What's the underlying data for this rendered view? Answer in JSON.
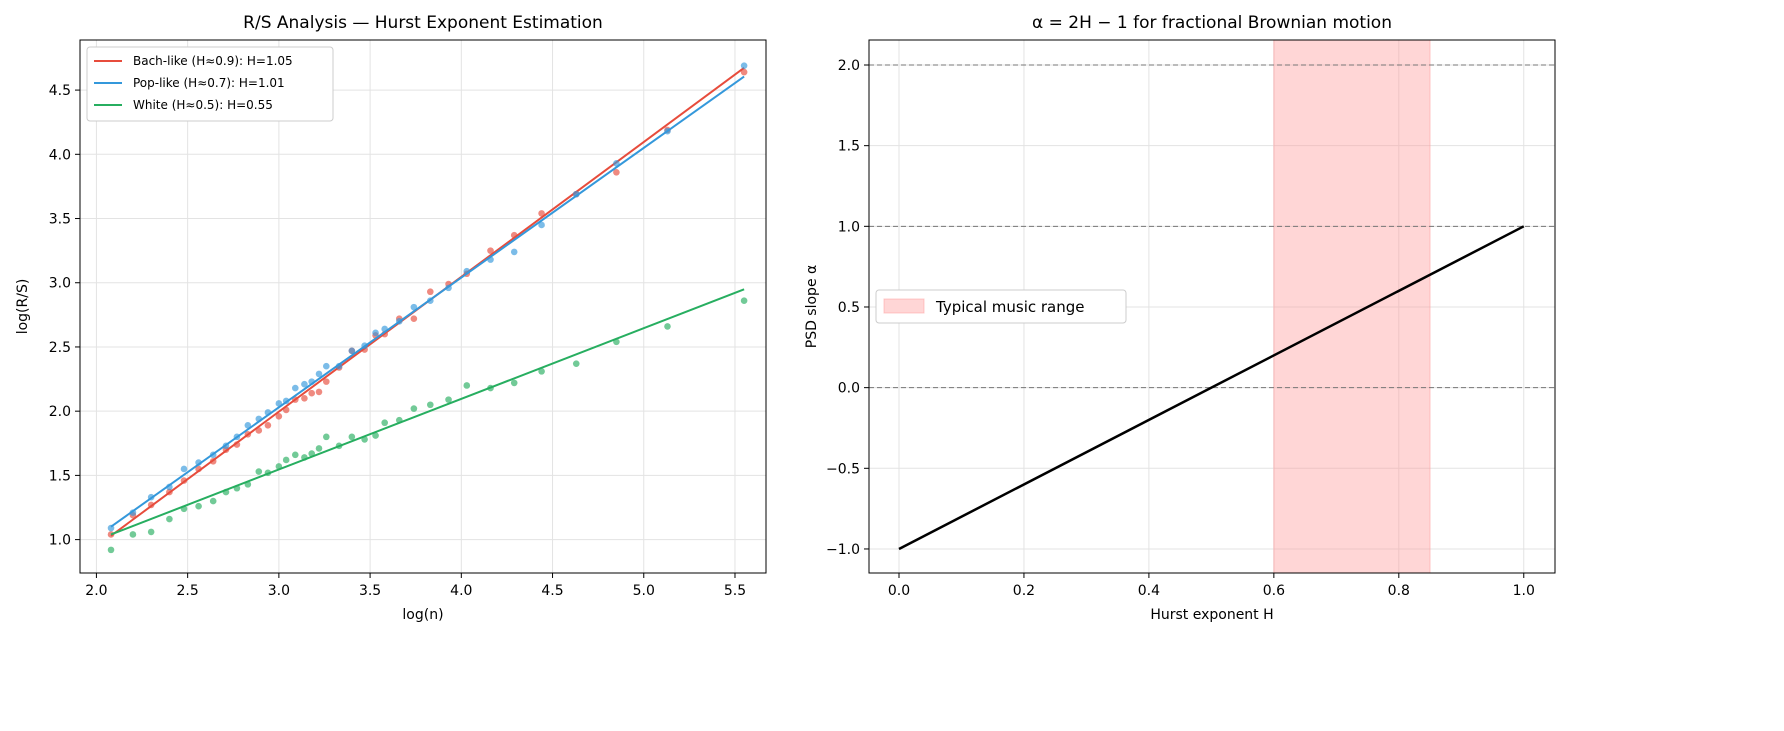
{
  "chart_data": [
    {
      "type": "scatter",
      "title": "R/S Analysis — Hurst Exponent Estimation",
      "xlabel": "log(n)",
      "ylabel": "log(R/S)",
      "xlim": [
        1.91,
        5.67
      ],
      "ylim": [
        0.74,
        4.89
      ],
      "xticks": [
        2.0,
        2.5,
        3.0,
        3.5,
        4.0,
        4.5,
        5.0,
        5.5
      ],
      "yticks": [
        1.0,
        1.5,
        2.0,
        2.5,
        3.0,
        3.5,
        4.0,
        4.5
      ],
      "grid": true,
      "legend_position": "top-left",
      "x": [
        2.08,
        2.2,
        2.3,
        2.4,
        2.48,
        2.56,
        2.64,
        2.71,
        2.77,
        2.83,
        2.89,
        2.94,
        3.0,
        3.04,
        3.09,
        3.14,
        3.18,
        3.22,
        3.26,
        3.33,
        3.4,
        3.47,
        3.53,
        3.58,
        3.66,
        3.74,
        3.83,
        3.93,
        4.03,
        4.16,
        4.29,
        4.44,
        4.63,
        4.85,
        5.13,
        5.55
      ],
      "series": [
        {
          "name": "Bach-like (H≈0.9): H=1.05",
          "color": "#e74c3c",
          "slope": 1.05,
          "intercept": -1.154,
          "values": [
            1.04,
            1.19,
            1.27,
            1.37,
            1.46,
            1.55,
            1.61,
            1.7,
            1.74,
            1.82,
            1.85,
            1.89,
            1.96,
            2.01,
            2.09,
            2.1,
            2.14,
            2.15,
            2.23,
            2.34,
            2.47,
            2.48,
            2.59,
            2.6,
            2.72,
            2.72,
            2.93,
            2.99,
            3.07,
            3.25,
            3.37,
            3.54,
            3.69,
            3.86,
            4.19,
            4.64
          ]
        },
        {
          "name": "Pop-like (H≈0.7): H=1.01",
          "color": "#3498db",
          "slope": 1.01,
          "intercept": -1.0,
          "values": [
            1.09,
            1.21,
            1.33,
            1.41,
            1.55,
            1.6,
            1.66,
            1.73,
            1.8,
            1.89,
            1.94,
            1.99,
            2.06,
            2.08,
            2.18,
            2.21,
            2.23,
            2.29,
            2.35,
            2.35,
            2.47,
            2.51,
            2.61,
            2.64,
            2.7,
            2.81,
            2.86,
            2.96,
            3.09,
            3.18,
            3.24,
            3.45,
            3.69,
            3.93,
            4.18,
            4.69
          ]
        },
        {
          "name": "White (H≈0.5): H=0.55",
          "color": "#27ae60",
          "slope": 0.55,
          "intercept": -0.104,
          "values": [
            0.92,
            1.04,
            1.06,
            1.16,
            1.24,
            1.26,
            1.3,
            1.37,
            1.4,
            1.43,
            1.53,
            1.52,
            1.57,
            1.62,
            1.66,
            1.64,
            1.67,
            1.71,
            1.8,
            1.73,
            1.8,
            1.78,
            1.81,
            1.91,
            1.93,
            2.02,
            2.05,
            2.09,
            2.2,
            2.18,
            2.22,
            2.31,
            2.37,
            2.54,
            2.66,
            2.86
          ]
        }
      ]
    },
    {
      "type": "line",
      "title": "α = 2H − 1 for fractional Brownian motion",
      "xlabel": "Hurst exponent H",
      "ylabel": "PSD slope α",
      "xlim": [
        -0.048,
        1.05
      ],
      "ylim": [
        -1.149,
        2.155
      ],
      "xticks": [
        0.0,
        0.2,
        0.4,
        0.6,
        0.8,
        1.0
      ],
      "yticks": [
        -1.0,
        -0.5,
        0.0,
        0.5,
        1.0,
        1.5,
        2.0
      ],
      "grid": true,
      "legend_position": "center-left",
      "x": [
        0.0,
        1.0
      ],
      "series": [
        {
          "values": [
            -1.0,
            1.0
          ],
          "color": "#000000"
        }
      ],
      "hlines": [
        0.0,
        1.0,
        2.0
      ],
      "shaded_region": {
        "name": "Typical music range",
        "x": [
          0.6,
          0.85
        ],
        "color": "#ff9999"
      }
    }
  ]
}
